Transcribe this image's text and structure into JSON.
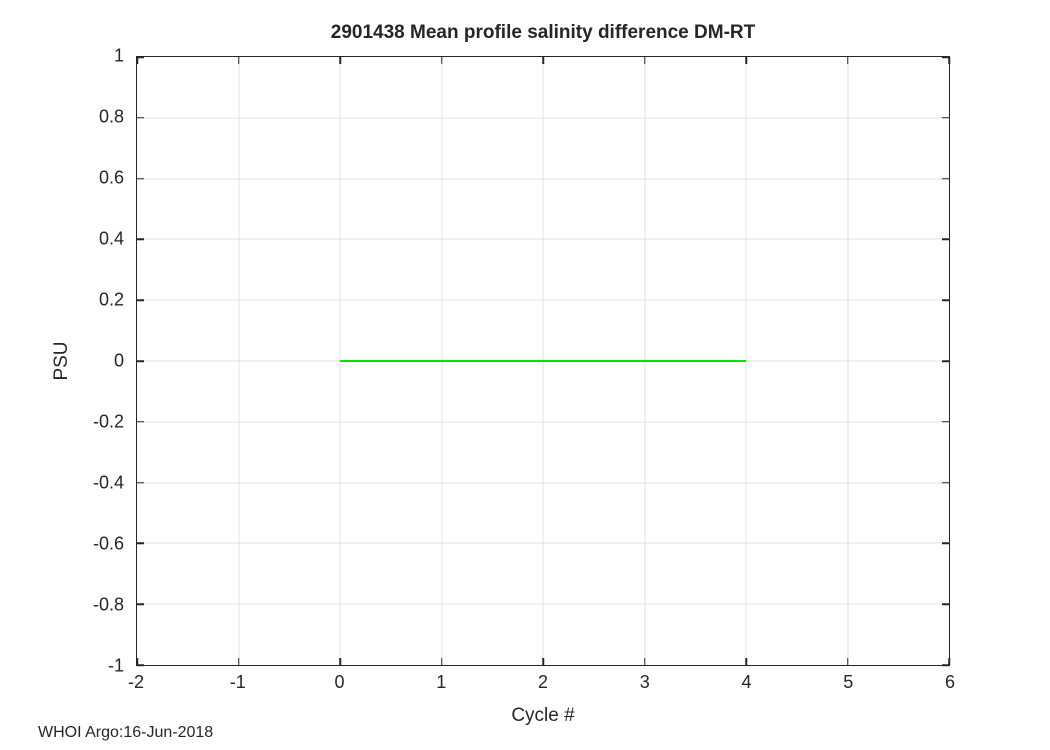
{
  "figure": {
    "background": "#ffffff",
    "footer": "WHOI Argo:16-Jun-2018"
  },
  "chart_data": {
    "type": "line",
    "title": "2901438 Mean profile salinity difference DM-RT",
    "xlabel": "Cycle #",
    "ylabel": "PSU",
    "xlim": [
      -2,
      6
    ],
    "ylim": [
      -1,
      1
    ],
    "xticks": [
      -2,
      -1,
      0,
      1,
      2,
      3,
      4,
      5,
      6
    ],
    "yticks": [
      -1,
      -0.8,
      -0.6,
      -0.4,
      -0.2,
      0,
      0.2,
      0.4,
      0.6,
      0.8,
      1
    ],
    "grid": true,
    "box": true,
    "tick_direction": "in",
    "legend": "none",
    "series": [
      {
        "name": "mean-salinity-difference-dm-rt",
        "x": [
          0,
          1,
          2,
          3,
          4
        ],
        "y": [
          0,
          0,
          0,
          0,
          0
        ],
        "color": "#00e400",
        "line_width": 2
      }
    ],
    "annotations": [
      "WHOI Argo:16-Jun-2018"
    ],
    "colors": {
      "grid": "#e0e0e0",
      "axis": "#262626",
      "text": "#262626",
      "background": "#ffffff"
    }
  }
}
